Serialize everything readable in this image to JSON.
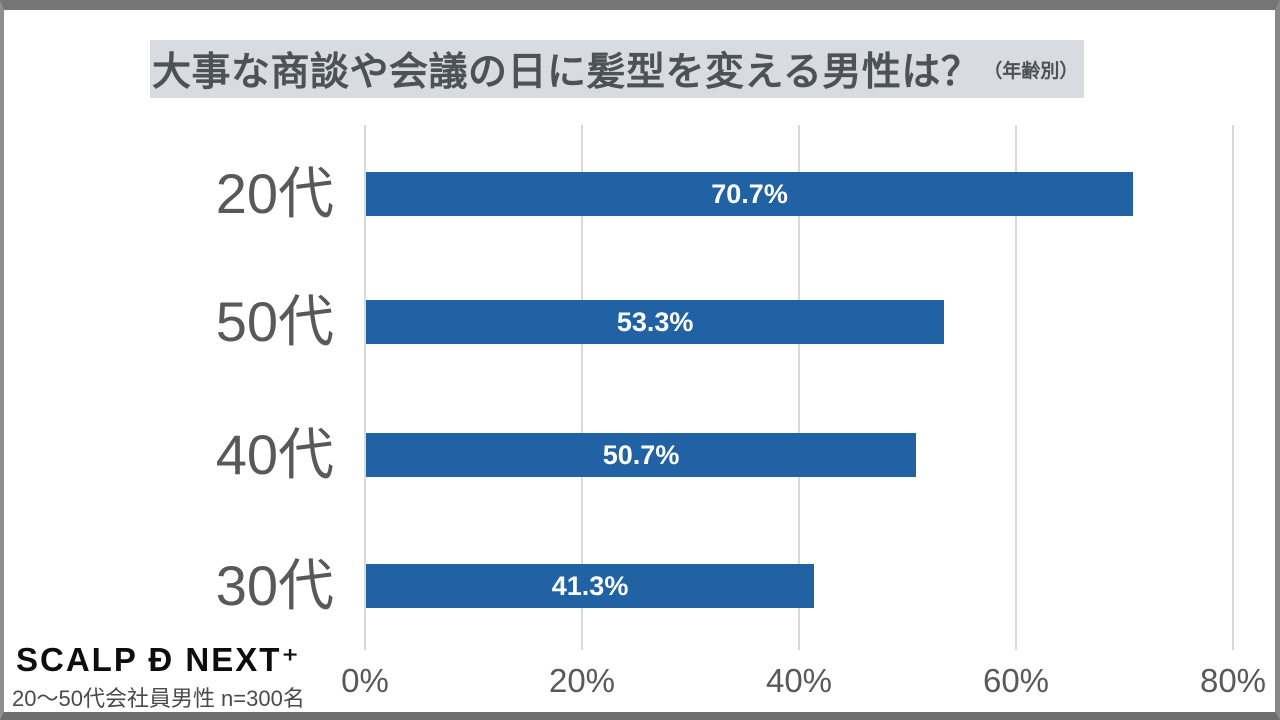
{
  "title": {
    "text": "大事な商談や会議の日に髪型を変える男性は？",
    "suffix": "（年齢別）"
  },
  "footer": {
    "logo": "SCALP Đ NEXT⁺",
    "note": "20〜50代会社員男性 n=300名"
  },
  "chart_data": {
    "type": "bar",
    "orientation": "horizontal",
    "title": "大事な商談や会議の日に髪型を変える男性は？（年齢別）",
    "categories": [
      "20代",
      "50代",
      "40代",
      "30代"
    ],
    "values": [
      70.7,
      53.3,
      50.7,
      41.3
    ],
    "value_labels": [
      "70.7%",
      "53.3%",
      "50.7%",
      "41.3%"
    ],
    "xlim": [
      0,
      80
    ],
    "x_ticks": [
      0,
      20,
      40,
      60,
      80
    ],
    "x_tick_labels": [
      "0%",
      "20%",
      "40%",
      "60%",
      "80%"
    ],
    "grid": true,
    "legend": "none",
    "bar_color": "#2062a3",
    "value_label_color": "#ffffff",
    "category_label_color": "#595959",
    "grid_color": "#d9d9d9",
    "title_bg_color": "#d8dbdf",
    "title_text_color": "#4c5257"
  }
}
